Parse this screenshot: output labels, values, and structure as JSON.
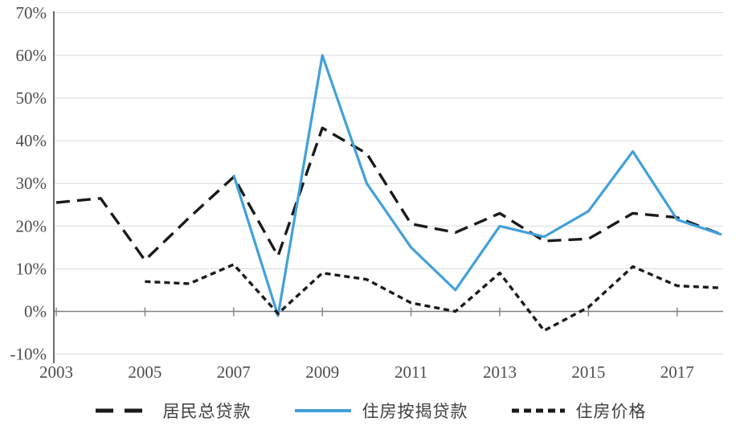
{
  "chart_data": {
    "type": "line",
    "x": [
      2003,
      2004,
      2005,
      2006,
      2007,
      2008,
      2009,
      2010,
      2011,
      2012,
      2013,
      2014,
      2015,
      2016,
      2017,
      2018
    ],
    "series": [
      {
        "name": "居民总贷款",
        "style": "long-dash",
        "color": "#1a1a1a",
        "values": [
          25.5,
          26.5,
          12,
          22,
          31.5,
          13,
          43,
          37,
          20.5,
          18.5,
          23,
          16.5,
          17,
          23,
          22,
          18
        ]
      },
      {
        "name": "住房按揭贷款",
        "style": "solid",
        "color": "#41a0da",
        "values": [
          null,
          null,
          null,
          null,
          32,
          -1,
          60,
          30,
          15,
          5,
          20,
          17.5,
          23.5,
          37.5,
          21.5,
          18
        ]
      },
      {
        "name": "住房价格",
        "style": "short-dash",
        "color": "#1a1a1a",
        "values": [
          null,
          null,
          7,
          6.5,
          11,
          -0.5,
          9,
          7.5,
          2,
          0,
          9,
          -4.5,
          1,
          10.5,
          6,
          5.5
        ]
      }
    ],
    "title": "",
    "xlabel": "",
    "ylabel": "",
    "ylim": [
      -10,
      70
    ],
    "grid": true,
    "legend_position": "bottom",
    "ytick_values": [
      70,
      60,
      50,
      40,
      30,
      20,
      10,
      0,
      -10
    ],
    "ytick_labels": [
      "70%",
      "60%",
      "50%",
      "40%",
      "30%",
      "20%",
      "10%",
      "0%",
      "-10%"
    ],
    "xtick_values": [
      2003,
      2005,
      2007,
      2009,
      2011,
      2013,
      2015,
      2017
    ],
    "xtick_labels": [
      "2003",
      "2005",
      "2007",
      "2009",
      "2011",
      "2013",
      "2015",
      "2017"
    ]
  },
  "legend": {
    "items": [
      {
        "label": "居民总贷款"
      },
      {
        "label": "住房按揭贷款"
      },
      {
        "label": "住房价格"
      }
    ]
  },
  "colors": {
    "gridline": "#d9d9d9",
    "zero_axis": "#808080",
    "y_axis": "#595959",
    "tick_label": "#4d4d4d",
    "line_blue": "#41a0da",
    "line_black": "#1a1a1a",
    "background": "#ffffff"
  }
}
